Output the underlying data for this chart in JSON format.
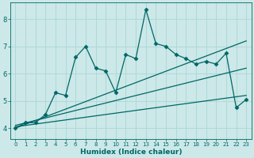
{
  "xlabel": "Humidex (Indice chaleur)",
  "xlim": [
    -0.5,
    23.5
  ],
  "ylim": [
    3.6,
    8.6
  ],
  "yticks": [
    4,
    5,
    6,
    7,
    8
  ],
  "xticks": [
    0,
    1,
    2,
    3,
    4,
    5,
    6,
    7,
    8,
    9,
    10,
    11,
    12,
    13,
    14,
    15,
    16,
    17,
    18,
    19,
    20,
    21,
    22,
    23
  ],
  "bg_color": "#cce8e8",
  "line_color": "#006666",
  "grid_color": "#b0d8d8",
  "main_line_x": [
    0,
    1,
    2,
    3,
    4,
    5,
    6,
    7,
    8,
    9,
    10,
    11,
    12,
    13,
    14,
    15,
    16,
    17,
    18,
    19,
    20,
    21,
    22,
    23
  ],
  "main_line_y": [
    4.0,
    4.2,
    4.2,
    4.5,
    5.3,
    5.2,
    6.6,
    7.0,
    6.2,
    6.1,
    5.3,
    6.7,
    6.55,
    8.35,
    7.1,
    7.0,
    6.7,
    6.55,
    6.35,
    6.45,
    6.35,
    6.75,
    4.75,
    5.05
  ],
  "reg_line1_x": [
    0,
    23
  ],
  "reg_line1_y": [
    4.0,
    7.2
  ],
  "reg_line2_x": [
    0,
    23
  ],
  "reg_line2_y": [
    4.1,
    6.2
  ],
  "reg_line3_x": [
    0,
    23
  ],
  "reg_line3_y": [
    4.05,
    5.2
  ],
  "marker": "D",
  "markersize": 2.5,
  "linewidth": 0.9
}
